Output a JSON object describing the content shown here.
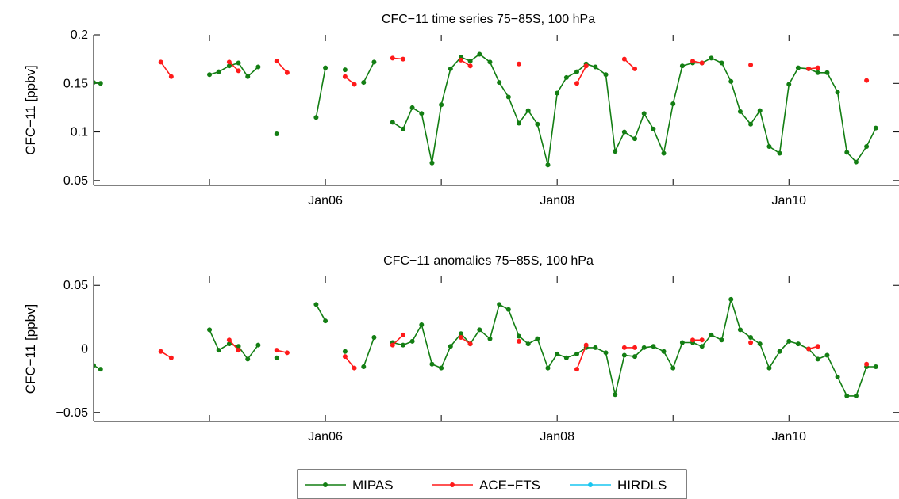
{
  "chart_data": [
    {
      "type": "line",
      "title": "CFC−11 time series 75−85S, 100 hPa",
      "xlabel": "",
      "ylabel": "CFC−11 [ppbv]",
      "ylim": [
        0.045,
        0.2
      ],
      "xlim": [
        2004.0,
        2010.95
      ],
      "yticks": [
        0.05,
        0.1,
        0.15,
        0.2
      ],
      "ytick_labels": [
        "0.05",
        "0.1",
        "0.15",
        "0.2"
      ],
      "xticks": [
        2006.0,
        2008.0,
        2010.0
      ],
      "xtick_labels": [
        "Jan06",
        "Jan08",
        "Jan10"
      ],
      "minor_xticks": [
        2005.0,
        2007.0,
        2009.0
      ],
      "reference_line": null,
      "series": [
        {
          "name": "MIPAS",
          "color": "#137e13",
          "segments": [
            [
              [
                2004.0,
                0.151
              ],
              [
                2004.06,
                0.15
              ]
            ],
            [
              [
                2005.0,
                0.159
              ],
              [
                2005.08,
                0.162
              ],
              [
                2005.17,
                0.168
              ],
              [
                2005.25,
                0.171
              ],
              [
                2005.33,
                0.157
              ],
              [
                2005.42,
                0.167
              ]
            ],
            [
              [
                2005.58,
                0.098
              ]
            ],
            [
              [
                2005.92,
                0.115
              ],
              [
                2006.0,
                0.166
              ]
            ],
            [
              [
                2006.17,
                0.164
              ]
            ],
            [
              [
                2006.33,
                0.151
              ],
              [
                2006.42,
                0.172
              ]
            ],
            [
              [
                2006.58,
                0.11
              ],
              [
                2006.67,
                0.103
              ],
              [
                2006.75,
                0.125
              ],
              [
                2006.83,
                0.119
              ],
              [
                2006.92,
                0.068
              ],
              [
                2007.0,
                0.128
              ],
              [
                2007.08,
                0.165
              ],
              [
                2007.17,
                0.177
              ],
              [
                2007.25,
                0.173
              ],
              [
                2007.33,
                0.18
              ],
              [
                2007.42,
                0.172
              ],
              [
                2007.5,
                0.151
              ],
              [
                2007.58,
                0.136
              ],
              [
                2007.67,
                0.109
              ],
              [
                2007.75,
                0.122
              ],
              [
                2007.83,
                0.108
              ],
              [
                2007.92,
                0.066
              ],
              [
                2008.0,
                0.14
              ],
              [
                2008.08,
                0.156
              ],
              [
                2008.17,
                0.162
              ],
              [
                2008.25,
                0.17
              ],
              [
                2008.33,
                0.167
              ],
              [
                2008.42,
                0.159
              ],
              [
                2008.5,
                0.08
              ],
              [
                2008.58,
                0.1
              ],
              [
                2008.67,
                0.093
              ],
              [
                2008.75,
                0.119
              ],
              [
                2008.83,
                0.103
              ],
              [
                2008.92,
                0.078
              ],
              [
                2009.0,
                0.129
              ],
              [
                2009.08,
                0.168
              ],
              [
                2009.17,
                0.171
              ],
              [
                2009.25,
                0.171
              ],
              [
                2009.33,
                0.176
              ],
              [
                2009.42,
                0.171
              ],
              [
                2009.5,
                0.152
              ],
              [
                2009.58,
                0.121
              ],
              [
                2009.67,
                0.108
              ],
              [
                2009.75,
                0.122
              ],
              [
                2009.83,
                0.085
              ],
              [
                2009.92,
                0.078
              ],
              [
                2010.0,
                0.149
              ],
              [
                2010.08,
                0.166
              ],
              [
                2010.17,
                0.165
              ],
              [
                2010.25,
                0.161
              ],
              [
                2010.33,
                0.161
              ],
              [
                2010.42,
                0.141
              ],
              [
                2010.5,
                0.079
              ],
              [
                2010.58,
                0.069
              ],
              [
                2010.67,
                0.085
              ],
              [
                2010.75,
                0.104
              ]
            ]
          ]
        },
        {
          "name": "ACE−FTS",
          "color": "#ff1a1a",
          "segments": [
            [
              [
                2004.58,
                0.172
              ],
              [
                2004.67,
                0.157
              ]
            ],
            [
              [
                2005.17,
                0.172
              ],
              [
                2005.25,
                0.163
              ]
            ],
            [
              [
                2005.58,
                0.173
              ],
              [
                2005.67,
                0.161
              ]
            ],
            [
              [
                2006.17,
                0.157
              ],
              [
                2006.25,
                0.149
              ]
            ],
            [
              [
                2006.58,
                0.176
              ],
              [
                2006.67,
                0.175
              ]
            ],
            [
              [
                2007.17,
                0.174
              ],
              [
                2007.25,
                0.168
              ]
            ],
            [
              [
                2007.67,
                0.17
              ]
            ],
            [
              [
                2008.17,
                0.15
              ],
              [
                2008.25,
                0.168
              ]
            ],
            [
              [
                2008.58,
                0.175
              ],
              [
                2008.67,
                0.165
              ]
            ],
            [
              [
                2009.17,
                0.173
              ],
              [
                2009.25,
                0.171
              ]
            ],
            [
              [
                2009.67,
                0.169
              ]
            ],
            [
              [
                2010.17,
                0.165
              ],
              [
                2010.25,
                0.166
              ]
            ],
            [
              [
                2010.67,
                0.153
              ]
            ]
          ]
        }
      ]
    },
    {
      "type": "line",
      "title": "CFC−11 anomalies 75−85S, 100 hPa",
      "xlabel": "",
      "ylabel": "CFC−11 [ppbv]",
      "ylim": [
        -0.057,
        0.057
      ],
      "xlim": [
        2004.0,
        2010.95
      ],
      "yticks": [
        -0.05,
        0,
        0.05
      ],
      "ytick_labels": [
        "−0.05",
        "0",
        "0.05"
      ],
      "xticks": [
        2006.0,
        2008.0,
        2010.0
      ],
      "xtick_labels": [
        "Jan06",
        "Jan08",
        "Jan10"
      ],
      "minor_xticks": [
        2005.0,
        2007.0,
        2009.0
      ],
      "reference_line": 0,
      "series": [
        {
          "name": "MIPAS",
          "color": "#137e13",
          "segments": [
            [
              [
                2004.0,
                -0.013
              ],
              [
                2004.06,
                -0.016
              ]
            ],
            [
              [
                2005.0,
                0.015
              ],
              [
                2005.08,
                -0.001
              ],
              [
                2005.17,
                0.004
              ],
              [
                2005.25,
                0.002
              ],
              [
                2005.33,
                -0.008
              ],
              [
                2005.42,
                0.003
              ]
            ],
            [
              [
                2005.58,
                -0.007
              ]
            ],
            [
              [
                2005.92,
                0.035
              ],
              [
                2006.0,
                0.022
              ]
            ],
            [
              [
                2006.17,
                -0.002
              ]
            ],
            [
              [
                2006.33,
                -0.014
              ],
              [
                2006.42,
                0.009
              ]
            ],
            [
              [
                2006.58,
                0.005
              ],
              [
                2006.67,
                0.003
              ],
              [
                2006.75,
                0.006
              ],
              [
                2006.83,
                0.019
              ],
              [
                2006.92,
                -0.012
              ],
              [
                2007.0,
                -0.015
              ],
              [
                2007.08,
                0.002
              ],
              [
                2007.17,
                0.012
              ],
              [
                2007.25,
                0.004
              ],
              [
                2007.33,
                0.015
              ],
              [
                2007.42,
                0.008
              ],
              [
                2007.5,
                0.035
              ],
              [
                2007.58,
                0.031
              ],
              [
                2007.67,
                0.01
              ],
              [
                2007.75,
                0.004
              ],
              [
                2007.83,
                0.008
              ],
              [
                2007.92,
                -0.015
              ],
              [
                2008.0,
                -0.004
              ],
              [
                2008.08,
                -0.007
              ],
              [
                2008.17,
                -0.004
              ],
              [
                2008.25,
                0.001
              ],
              [
                2008.33,
                0.001
              ],
              [
                2008.42,
                -0.003
              ],
              [
                2008.5,
                -0.036
              ],
              [
                2008.58,
                -0.005
              ],
              [
                2008.67,
                -0.006
              ],
              [
                2008.75,
                0.001
              ],
              [
                2008.83,
                0.002
              ],
              [
                2008.92,
                -0.002
              ],
              [
                2009.0,
                -0.015
              ],
              [
                2009.08,
                0.005
              ],
              [
                2009.17,
                0.005
              ],
              [
                2009.25,
                0.002
              ],
              [
                2009.33,
                0.011
              ],
              [
                2009.42,
                0.007
              ],
              [
                2009.5,
                0.039
              ],
              [
                2009.58,
                0.015
              ],
              [
                2009.67,
                0.009
              ],
              [
                2009.75,
                0.004
              ],
              [
                2009.83,
                -0.015
              ],
              [
                2009.92,
                -0.002
              ],
              [
                2010.0,
                0.006
              ],
              [
                2010.08,
                0.004
              ],
              [
                2010.17,
                0.0
              ],
              [
                2010.25,
                -0.008
              ],
              [
                2010.33,
                -0.005
              ],
              [
                2010.42,
                -0.022
              ],
              [
                2010.5,
                -0.037
              ],
              [
                2010.58,
                -0.037
              ],
              [
                2010.67,
                -0.014
              ],
              [
                2010.75,
                -0.014
              ]
            ]
          ]
        },
        {
          "name": "ACE−FTS",
          "color": "#ff1a1a",
          "segments": [
            [
              [
                2004.58,
                -0.002
              ],
              [
                2004.67,
                -0.007
              ]
            ],
            [
              [
                2005.17,
                0.007
              ],
              [
                2005.25,
                -0.001
              ]
            ],
            [
              [
                2005.58,
                -0.001
              ],
              [
                2005.67,
                -0.003
              ]
            ],
            [
              [
                2006.17,
                -0.006
              ],
              [
                2006.25,
                -0.015
              ]
            ],
            [
              [
                2006.58,
                0.003
              ],
              [
                2006.67,
                0.011
              ]
            ],
            [
              [
                2007.17,
                0.009
              ],
              [
                2007.25,
                0.004
              ]
            ],
            [
              [
                2007.67,
                0.006
              ]
            ],
            [
              [
                2008.17,
                -0.016
              ],
              [
                2008.25,
                0.003
              ]
            ],
            [
              [
                2008.58,
                0.001
              ],
              [
                2008.67,
                0.001
              ]
            ],
            [
              [
                2009.17,
                0.007
              ],
              [
                2009.25,
                0.007
              ]
            ],
            [
              [
                2009.67,
                0.005
              ]
            ],
            [
              [
                2010.17,
                0.0
              ],
              [
                2010.25,
                0.002
              ]
            ],
            [
              [
                2010.67,
                -0.012
              ]
            ]
          ]
        }
      ]
    }
  ],
  "legend": {
    "placement": "bottom-center",
    "entries": [
      {
        "label": "MIPAS",
        "color": "#137e13"
      },
      {
        "label": "ACE−FTS",
        "color": "#ff1a1a"
      },
      {
        "label": "HIRDLS",
        "color": "#18c6f0"
      }
    ]
  }
}
